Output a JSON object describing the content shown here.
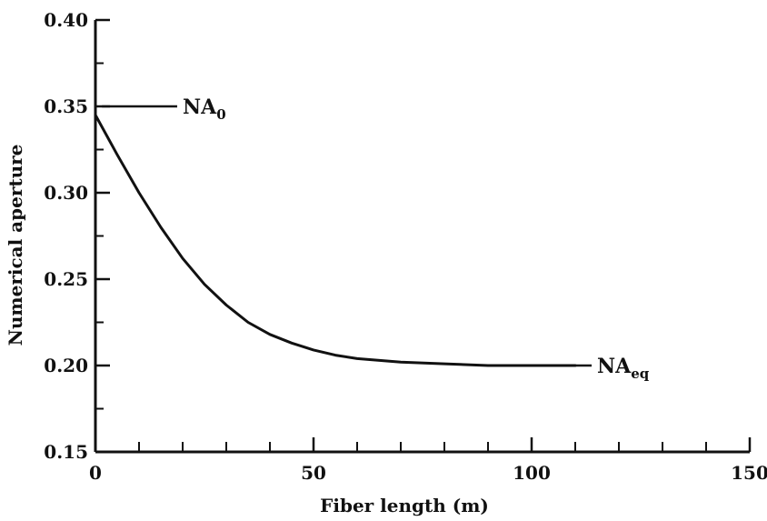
{
  "chart_data": {
    "type": "line",
    "title": "",
    "xlabel": "Fiber length (m)",
    "ylabel": "Numerical aperture",
    "xlim": [
      0,
      150
    ],
    "ylim": [
      0.15,
      0.4
    ],
    "x_ticks": [
      0,
      50,
      100,
      150
    ],
    "x_tick_labels": [
      "0",
      "50",
      "100",
      "150"
    ],
    "y_ticks": [
      0.15,
      0.2,
      0.25,
      0.3,
      0.35,
      0.4
    ],
    "y_tick_labels": [
      "0.15",
      "0.20",
      "0.25",
      "0.30",
      "0.35",
      "0.40"
    ],
    "grid": false,
    "line_color": "#111111",
    "series": [
      {
        "x": [
          0,
          5,
          10,
          15,
          20,
          25,
          30,
          35,
          40,
          45,
          50,
          55,
          60,
          70,
          80,
          90,
          100,
          110
        ],
        "y": [
          0.345,
          0.322,
          0.3,
          0.28,
          0.262,
          0.247,
          0.235,
          0.225,
          0.218,
          0.213,
          0.209,
          0.206,
          0.204,
          0.202,
          0.201,
          0.2,
          0.2,
          0.2
        ]
      }
    ],
    "annotations": [
      {
        "text": "NA",
        "sub": "0",
        "x": 20,
        "y": 0.35
      },
      {
        "text": "NA",
        "sub": "eq",
        "x": 115,
        "y": 0.2
      }
    ]
  }
}
